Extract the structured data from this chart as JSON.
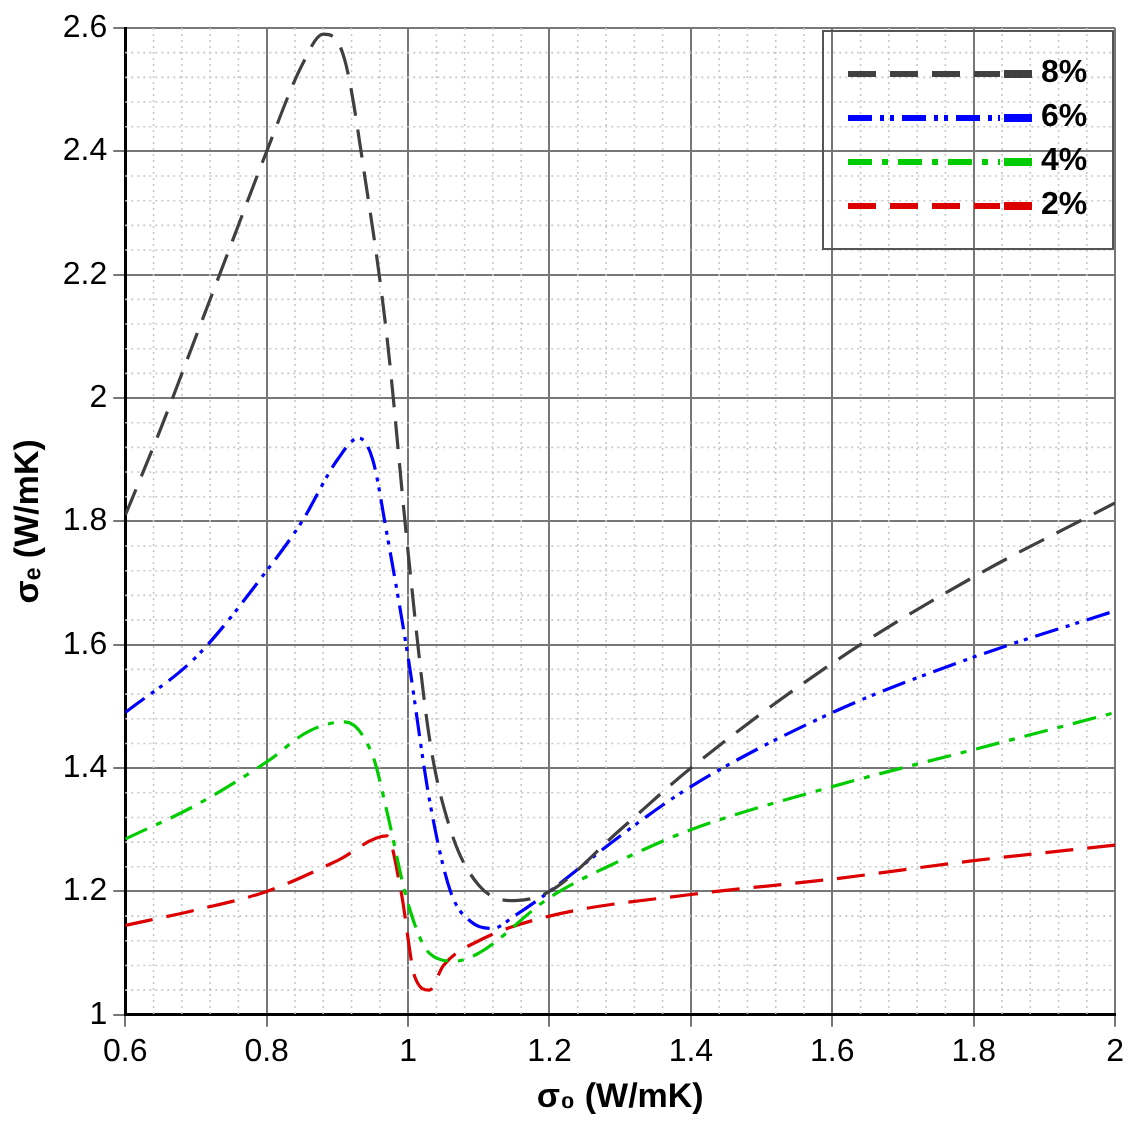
{
  "chart_data": {
    "type": "line",
    "xlabel": "σ₀ (W/mK)",
    "ylabel": "σₑ (W/mK)",
    "xlim": [
      0.6,
      2
    ],
    "xticks": [
      0.6,
      0.8,
      {
        "value": 1,
        "label": "1"
      },
      1.2,
      1.4,
      1.6,
      1.8,
      {
        "value": 2,
        "label": "2"
      }
    ],
    "ylim": [
      1,
      2.6
    ],
    "yticks": [
      {
        "value": 1,
        "label": "1"
      },
      1.2,
      1.4,
      1.6,
      1.8,
      {
        "value": 2,
        "label": "2"
      },
      2.2,
      2.4,
      2.6
    ],
    "grid": true,
    "legend": "top right",
    "marker": "none",
    "series": [
      {
        "name": "8%",
        "color": "#404040",
        "line_style": "dashed",
        "x": [
          0.6,
          0.65,
          0.7,
          0.75,
          0.8,
          0.85,
          0.88,
          0.91,
          0.94,
          0.97,
          1.0,
          1.03,
          1.06,
          1.1,
          1.15,
          1.2,
          1.3,
          1.4,
          1.6,
          1.8,
          2.0
        ],
        "values": [
          1.81,
          1.95,
          2.1,
          2.25,
          2.4,
          2.54,
          2.59,
          2.55,
          2.35,
          2.1,
          1.75,
          1.45,
          1.3,
          1.21,
          1.185,
          1.2,
          1.3,
          1.4,
          1.57,
          1.71,
          1.83
        ]
      },
      {
        "name": "6%",
        "color": "#0000ff",
        "line_style": "dashdotdot",
        "x": [
          0.6,
          0.7,
          0.8,
          0.85,
          0.9,
          0.93,
          0.95,
          0.97,
          1.0,
          1.03,
          1.06,
          1.09,
          1.12,
          1.15,
          1.2,
          1.3,
          1.4,
          1.6,
          1.8,
          2.0
        ],
        "values": [
          1.49,
          1.58,
          1.72,
          1.8,
          1.9,
          1.935,
          1.9,
          1.78,
          1.58,
          1.35,
          1.2,
          1.15,
          1.14,
          1.16,
          1.2,
          1.29,
          1.37,
          1.49,
          1.58,
          1.655
        ]
      },
      {
        "name": "4%",
        "color": "#00cc00",
        "line_style": "dashdot",
        "x": [
          0.6,
          0.7,
          0.8,
          0.86,
          0.91,
          0.95,
          0.97,
          1.0,
          1.03,
          1.066,
          1.1,
          1.2,
          1.3,
          1.4,
          1.6,
          1.8,
          2.0
        ],
        "values": [
          1.285,
          1.34,
          1.41,
          1.46,
          1.475,
          1.42,
          1.33,
          1.18,
          1.1,
          1.087,
          1.1,
          1.19,
          1.25,
          1.3,
          1.37,
          1.43,
          1.49
        ]
      },
      {
        "name": "2%",
        "color": "#dd0000",
        "line_style": "dashed",
        "x": [
          0.6,
          0.7,
          0.8,
          0.9,
          0.97,
          0.99,
          1.01,
          1.03,
          1.05,
          1.1,
          1.2,
          1.4,
          1.6,
          1.8,
          2.0
        ],
        "values": [
          1.145,
          1.17,
          1.2,
          1.25,
          1.29,
          1.2,
          1.06,
          1.04,
          1.08,
          1.12,
          1.16,
          1.195,
          1.22,
          1.25,
          1.275
        ]
      }
    ]
  }
}
